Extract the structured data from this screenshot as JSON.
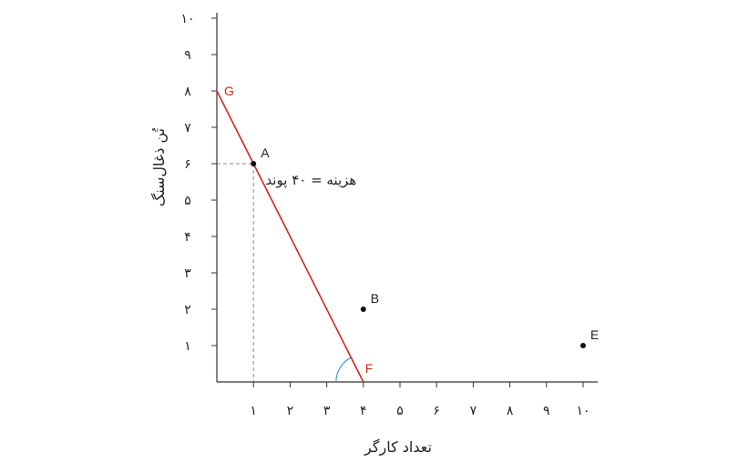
{
  "chart_data": {
    "type": "line",
    "xlabel": "تعداد کارگر",
    "ylabel": "تُن ذغال‌سنگ",
    "xlim": [
      0,
      10
    ],
    "ylim": [
      0,
      10
    ],
    "x_tick_labels": [
      "۱",
      "۲",
      "۳",
      "۴",
      "۵",
      "۶",
      "۷",
      "۸",
      "۹",
      "۱۰"
    ],
    "y_tick_labels": [
      "۱",
      "۲",
      "۳",
      "۴",
      "۵",
      "۶",
      "۷",
      "۸",
      "۹",
      "۱۰"
    ],
    "grid": false,
    "colors": {
      "line": "#d7261e",
      "guides": "#888888",
      "angle_arc": "#3aa0d8",
      "points": "#111111"
    },
    "series": [
      {
        "x": [
          0,
          4
        ],
        "y": [
          8,
          0
        ]
      }
    ],
    "line_endpoint_labels": [
      {
        "label": "G",
        "x": 0,
        "y": 8
      },
      {
        "label": "F",
        "x": 4,
        "y": 0
      }
    ],
    "points": [
      {
        "label": "A",
        "x": 1,
        "y": 6
      },
      {
        "label": "B",
        "x": 4,
        "y": 2
      },
      {
        "label": "E",
        "x": 10,
        "y": 1
      }
    ],
    "annotations": [
      {
        "text": "هزینه = ۴۰ پوند",
        "x": 2.0,
        "y": 5.5
      }
    ]
  }
}
